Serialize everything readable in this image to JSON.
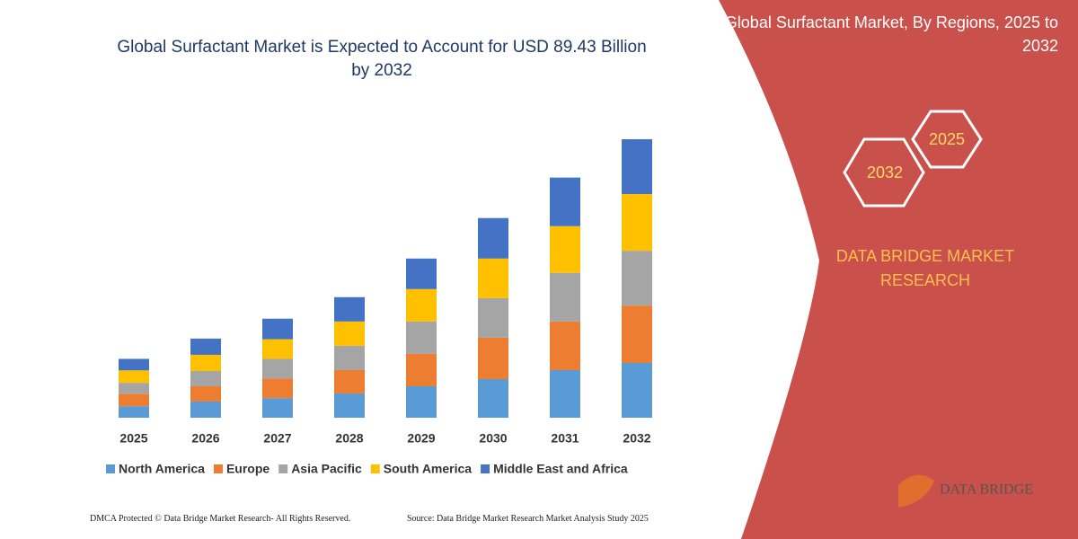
{
  "chart_data": {
    "type": "stacked-bar",
    "title": "Global Surfactant Market is Expected to Account for USD 89.43 Billion by 2032",
    "categories": [
      "2025",
      "2026",
      "2027",
      "2028",
      "2029",
      "2030",
      "2031",
      "2032"
    ],
    "series": [
      {
        "name": "North America",
        "color": "#5b9bd5",
        "values": [
          3.7,
          5.2,
          6.3,
          7.8,
          10.1,
          12.4,
          15.3,
          17.6
        ]
      },
      {
        "name": "Europe",
        "color": "#ed7d31",
        "values": [
          4.0,
          4.9,
          6.3,
          7.5,
          10.4,
          13.3,
          15.6,
          18.4
        ]
      },
      {
        "name": "Asia Pacific",
        "color": "#a5a5a5",
        "values": [
          3.5,
          4.9,
          6.3,
          7.8,
          10.4,
          12.7,
          15.6,
          17.6
        ]
      },
      {
        "name": "South America",
        "color": "#ffc000",
        "values": [
          4.0,
          5.2,
          6.3,
          7.8,
          10.4,
          12.7,
          15.0,
          18.2
        ]
      },
      {
        "name": "Middle East and Africa",
        "color": "#4472c4",
        "values": [
          3.7,
          5.2,
          6.6,
          7.8,
          9.8,
          13.0,
          15.6,
          17.6
        ]
      }
    ]
  },
  "panel": {
    "title": "Global Surfactant Market, By Regions, 2025 to 2032",
    "hex_a": "2032",
    "hex_b": "2025",
    "brand": "DATA BRIDGE MARKET RESEARCH"
  },
  "footer": {
    "copyright": "DMCA Protected © Data Bridge Market Research- All Rights Reserved.",
    "source": "Source: Data Bridge Market Research  Market Analysis Study 2025",
    "logo": "DATA BRIDGE"
  }
}
